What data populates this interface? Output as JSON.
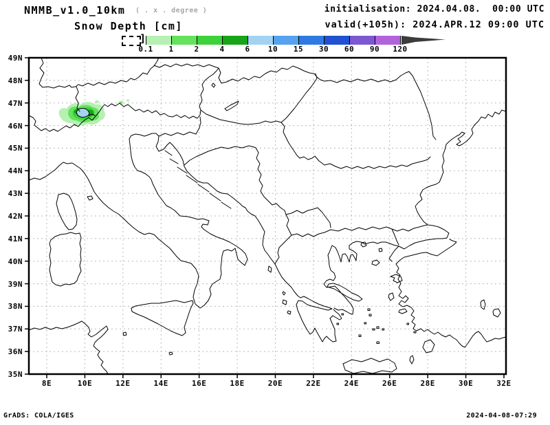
{
  "header": {
    "model_title": "NMMB_v1.0_10km",
    "degree_note": "( . x . degree )",
    "variable_title": "Snow Depth [cm]",
    "init_line": "initialisation: 2024.04.08.  00:00 UTC",
    "valid_line": "valid(+105h): 2024.APR.12 09:00 UTC"
  },
  "colorbar": {
    "levels": [
      "0.1",
      "1",
      "2",
      "4",
      "6",
      "10",
      "15",
      "30",
      "60",
      "90",
      "120"
    ],
    "colors": [
      "#b6f0b2",
      "#64e25e",
      "#3ed23a",
      "#18a418",
      "#a4d3f2",
      "#55a2ee",
      "#2f7ae2",
      "#2150d0",
      "#7e58d2",
      "#b163dc"
    ],
    "arrow_color": "#3c3c3c",
    "units": "cm"
  },
  "map": {
    "lat_labels": [
      "49N",
      "48N",
      "47N",
      "46N",
      "45N",
      "44N",
      "43N",
      "42N",
      "41N",
      "40N",
      "39N",
      "38N",
      "37N",
      "36N",
      "35N"
    ],
    "lon_labels": [
      "8E",
      "10E",
      "12E",
      "14E",
      "16E",
      "18E",
      "20E",
      "22E",
      "24E",
      "26E",
      "28E",
      "30E",
      "32E"
    ],
    "grid_color": "#b8b8b8",
    "frame_color": "#000000"
  },
  "snow_report": {
    "type": "heatmap",
    "title": "Snow Depth [cm]",
    "shaded_region": "Alps near 46.5N, 9.5E-11E",
    "core_value_band_cm": "6-10",
    "outer_band_cm": "0.1-1",
    "small_spots": [
      "~47.0N 10.6E (0.1-1 cm)",
      "~47.0N 11.9E (0.1-2 cm)",
      "~47.1N 12.3E (0.1-1 cm)"
    ]
  },
  "footer": {
    "credit": "GrADS: COLA/IGES",
    "timestamp": "2024-04-08-07:29"
  }
}
